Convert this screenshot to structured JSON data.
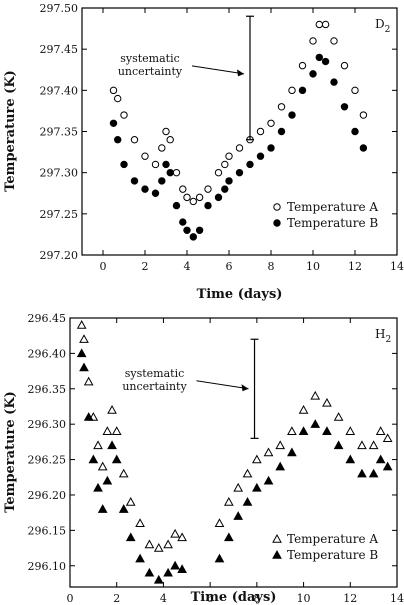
{
  "chart_data": [
    {
      "type": "scatter",
      "panel_label": "D",
      "panel_label_sub": "2",
      "xlabel": "Time (days)",
      "ylabel": "Temperature (K)",
      "xlim": [
        -1,
        14
      ],
      "ylim": [
        297.2,
        297.5
      ],
      "xticks": [
        0,
        2,
        4,
        6,
        8,
        10,
        12,
        14
      ],
      "yticks": [
        297.2,
        297.25,
        297.3,
        297.35,
        297.4,
        297.45,
        297.5
      ],
      "ytick_decimals": 2,
      "legend_position": "lower-right",
      "annotation": {
        "text_lines": [
          "systematic",
          "uncertainty"
        ],
        "bar_x": 7.0,
        "bar_y": [
          297.34,
          297.49
        ],
        "arrow_y": 297.42
      },
      "series": [
        {
          "name": "Temperature A",
          "marker": "open-circle",
          "x": [
            0.5,
            0.7,
            1.0,
            1.5,
            2.0,
            2.5,
            2.8,
            3.0,
            3.2,
            3.5,
            3.8,
            4.0,
            4.3,
            4.6,
            5.0,
            5.5,
            5.8,
            6.0,
            6.5,
            7.0,
            7.5,
            8.0,
            8.5,
            9.0,
            9.5,
            10.0,
            10.3,
            10.6,
            11.0,
            11.5,
            12.0,
            12.4
          ],
          "y": [
            297.4,
            297.39,
            297.37,
            297.34,
            297.32,
            297.31,
            297.33,
            297.35,
            297.34,
            297.3,
            297.28,
            297.27,
            297.265,
            297.27,
            297.28,
            297.3,
            297.31,
            297.32,
            297.33,
            297.34,
            297.35,
            297.36,
            297.38,
            297.4,
            297.43,
            297.46,
            297.48,
            297.48,
            297.46,
            297.43,
            297.4,
            297.37
          ]
        },
        {
          "name": "Temperature B",
          "marker": "filled-circle",
          "x": [
            0.5,
            0.7,
            1.0,
            1.5,
            2.0,
            2.5,
            2.8,
            3.0,
            3.2,
            3.5,
            3.8,
            4.0,
            4.3,
            4.6,
            5.0,
            5.5,
            5.8,
            6.0,
            6.5,
            7.0,
            7.5,
            8.0,
            8.5,
            9.0,
            9.5,
            10.0,
            10.3,
            10.6,
            11.0,
            11.5,
            12.0,
            12.4
          ],
          "y": [
            297.36,
            297.34,
            297.31,
            297.29,
            297.28,
            297.275,
            297.29,
            297.31,
            297.3,
            297.26,
            297.24,
            297.23,
            297.222,
            297.23,
            297.26,
            297.27,
            297.28,
            297.29,
            297.3,
            297.31,
            297.32,
            297.33,
            297.35,
            297.37,
            297.4,
            297.42,
            297.44,
            297.435,
            297.41,
            297.38,
            297.35,
            297.33
          ]
        }
      ]
    },
    {
      "type": "scatter",
      "panel_label": "H",
      "panel_label_sub": "2",
      "xlabel": "Time (days)",
      "ylabel": "Temperature (K)",
      "xlim": [
        0,
        14
      ],
      "ylim": [
        296.07,
        296.45
      ],
      "xticks": [
        0,
        2,
        4,
        6,
        8,
        10,
        12,
        14
      ],
      "yticks": [
        296.1,
        296.15,
        296.2,
        296.25,
        296.3,
        296.35,
        296.4,
        296.45
      ],
      "ytick_decimals": 2,
      "legend_position": "lower-right",
      "annotation": {
        "text_lines": [
          "systematic",
          "uncertainty"
        ],
        "bar_x": 7.9,
        "bar_y": [
          296.28,
          296.42
        ],
        "arrow_y": 296.35
      },
      "series": [
        {
          "name": "Temperature A",
          "marker": "open-triangle",
          "x": [
            0.5,
            0.6,
            0.8,
            1.0,
            1.2,
            1.4,
            1.6,
            1.8,
            2.0,
            2.3,
            2.6,
            3.0,
            3.4,
            3.8,
            4.2,
            4.5,
            4.8,
            6.4,
            6.8,
            7.2,
            7.6,
            8.0,
            8.5,
            9.0,
            9.5,
            10.0,
            10.5,
            11.0,
            11.5,
            12.0,
            12.5,
            13.0,
            13.3,
            13.6
          ],
          "y": [
            296.44,
            296.42,
            296.36,
            296.31,
            296.27,
            296.24,
            296.29,
            296.32,
            296.29,
            296.23,
            296.19,
            296.16,
            296.13,
            296.125,
            296.13,
            296.145,
            296.14,
            296.16,
            296.19,
            296.21,
            296.23,
            296.25,
            296.26,
            296.27,
            296.29,
            296.32,
            296.34,
            296.33,
            296.31,
            296.29,
            296.27,
            296.27,
            296.29,
            296.28
          ]
        },
        {
          "name": "Temperature B",
          "marker": "filled-triangle",
          "x": [
            0.5,
            0.6,
            0.8,
            1.0,
            1.2,
            1.4,
            1.6,
            1.8,
            2.0,
            2.3,
            2.6,
            3.0,
            3.4,
            3.8,
            4.2,
            4.5,
            4.8,
            6.4,
            6.8,
            7.2,
            7.6,
            8.0,
            8.5,
            9.0,
            9.5,
            10.0,
            10.5,
            11.0,
            11.5,
            12.0,
            12.5,
            13.0,
            13.3,
            13.6
          ],
          "y": [
            296.4,
            296.38,
            296.31,
            296.25,
            296.21,
            296.18,
            296.22,
            296.27,
            296.25,
            296.18,
            296.14,
            296.11,
            296.09,
            296.08,
            296.09,
            296.1,
            296.095,
            296.11,
            296.14,
            296.17,
            296.19,
            296.21,
            296.22,
            296.24,
            296.26,
            296.29,
            296.3,
            296.29,
            296.27,
            296.25,
            296.23,
            296.23,
            296.25,
            296.24
          ]
        }
      ]
    }
  ]
}
